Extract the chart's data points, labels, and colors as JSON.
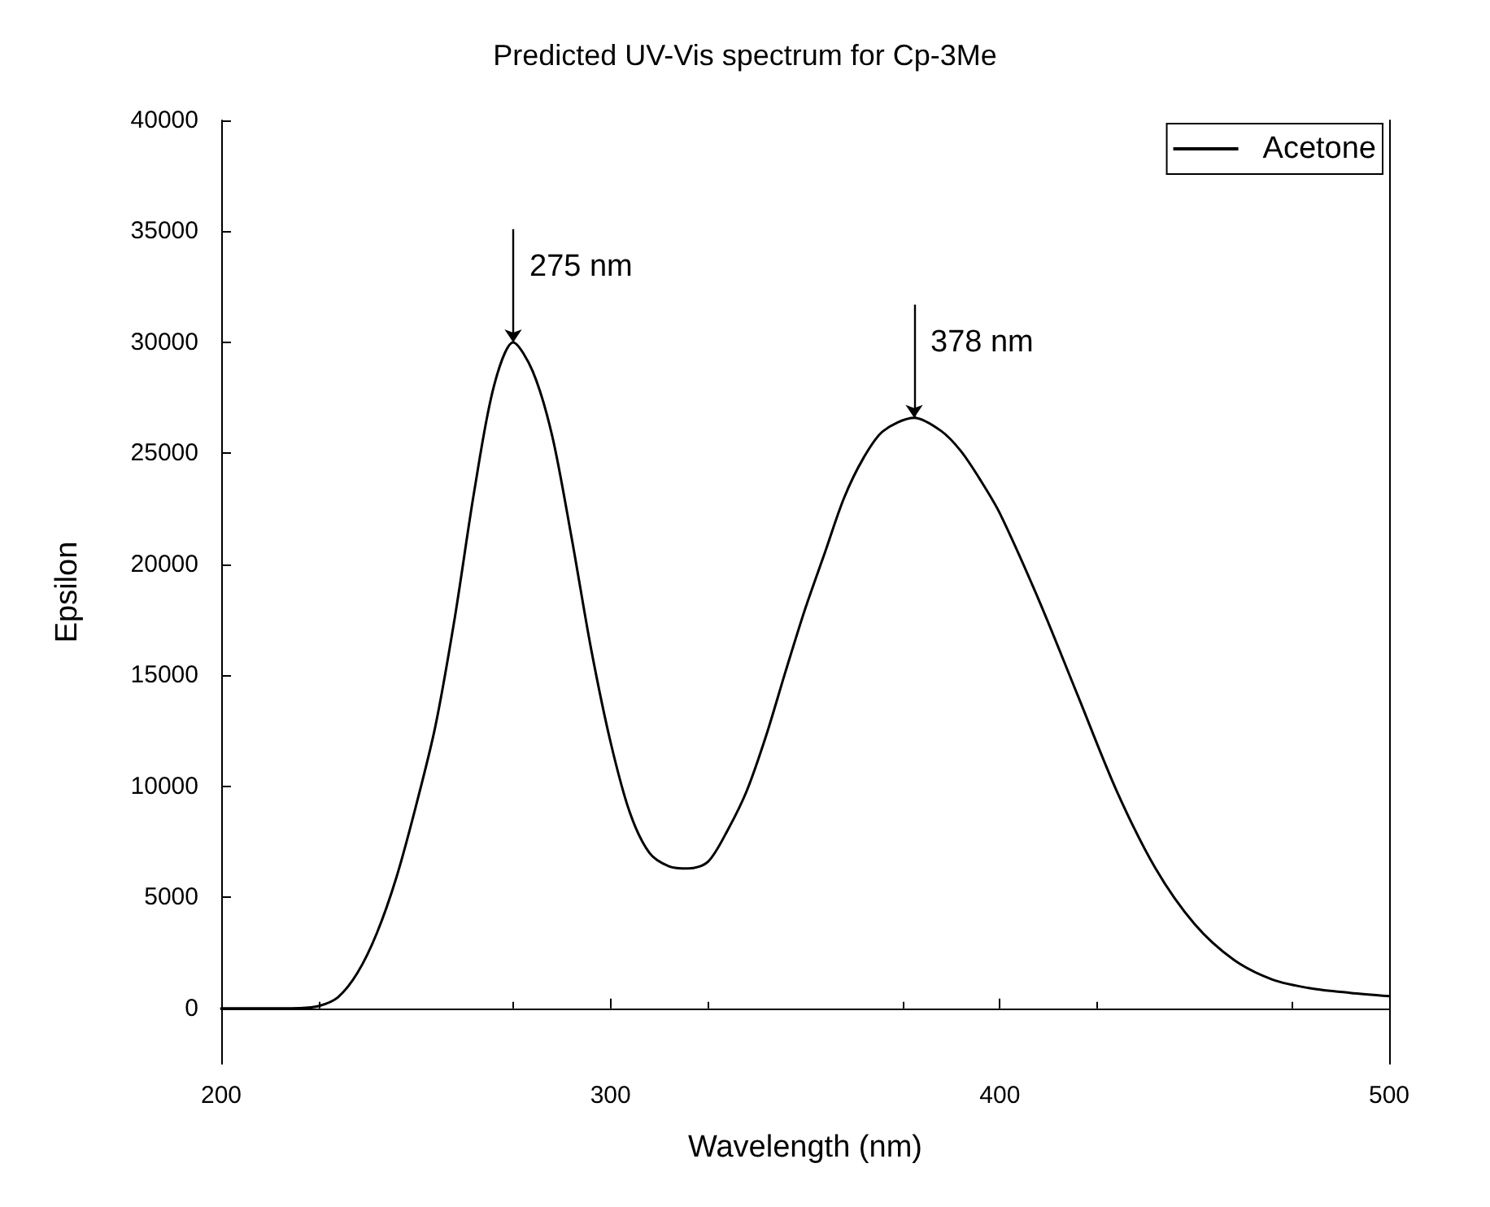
{
  "chart_data": {
    "type": "line",
    "title": "Predicted UV-Vis spectrum for Cp-3Me",
    "xlabel": "Wavelength (nm)",
    "ylabel": "Epsilon",
    "xlim": [
      200,
      500
    ],
    "xticks": [
      200,
      300,
      400,
      500
    ],
    "ylim": [
      -2500,
      40000
    ],
    "yticks": [
      0,
      5000,
      10000,
      15000,
      20000,
      25000,
      30000,
      35000,
      40000
    ],
    "legend": "top right",
    "marker": "none",
    "line_style": "solid",
    "annotations": [
      {
        "text": "275 nm",
        "x": 275,
        "y": 30000
      },
      {
        "text": "378 nm",
        "x": 378,
        "y": 26600
      }
    ],
    "series": [
      {
        "name": "Acetone",
        "color": "#000000",
        "x": [
          200,
          210,
          215,
          220,
          225,
          230,
          235,
          240,
          245,
          250,
          255,
          260,
          265,
          270,
          275,
          280,
          285,
          290,
          295,
          300,
          305,
          310,
          315,
          320,
          325,
          330,
          335,
          340,
          345,
          350,
          355,
          360,
          365,
          370,
          378,
          385,
          390,
          395,
          400,
          410,
          420,
          430,
          440,
          450,
          460,
          470,
          480,
          490,
          500
        ],
        "values": [
          0,
          0,
          0,
          10,
          100,
          500,
          1600,
          3400,
          5900,
          9100,
          12700,
          17600,
          23300,
          28000,
          30000,
          28700,
          25800,
          21200,
          16200,
          12000,
          8800,
          7000,
          6400,
          6300,
          6600,
          8000,
          9800,
          12300,
          15200,
          18000,
          20500,
          23000,
          24800,
          26000,
          26600,
          26000,
          25100,
          23800,
          22300,
          18400,
          14100,
          9800,
          6300,
          3800,
          2200,
          1300,
          900,
          700,
          550
        ]
      }
    ]
  }
}
